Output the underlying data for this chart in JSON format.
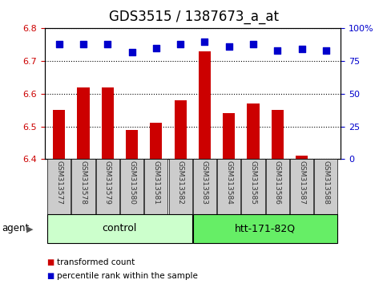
{
  "title": "GDS3515 / 1387673_a_at",
  "samples": [
    "GSM313577",
    "GSM313578",
    "GSM313579",
    "GSM313580",
    "GSM313581",
    "GSM313582",
    "GSM313583",
    "GSM313584",
    "GSM313585",
    "GSM313586",
    "GSM313587",
    "GSM313588"
  ],
  "bar_values": [
    6.55,
    6.62,
    6.62,
    6.49,
    6.51,
    6.58,
    6.73,
    6.54,
    6.57,
    6.55,
    6.41,
    6.4
  ],
  "percentile_values": [
    88,
    88,
    88,
    82,
    85,
    88,
    90,
    86,
    88,
    83,
    84,
    83
  ],
  "ylim_left": [
    6.4,
    6.8
  ],
  "yticks_left": [
    6.4,
    6.5,
    6.6,
    6.7,
    6.8
  ],
  "yticks_right": [
    0,
    25,
    50,
    75,
    100
  ],
  "bar_color": "#cc0000",
  "dot_color": "#0000cc",
  "bar_width": 0.5,
  "control_label": "control",
  "treatment_label": "htt-171-82Q",
  "agent_label": "agent",
  "legend_bar_label": "transformed count",
  "legend_dot_label": "percentile rank within the sample",
  "control_color": "#ccffcc",
  "treatment_color": "#66ee66",
  "dotted_line_color": "#000000",
  "left_axis_color": "#cc0000",
  "right_axis_color": "#0000cc",
  "title_fontsize": 12,
  "tick_fontsize": 8,
  "label_fontsize": 8,
  "group_label_fontsize": 9,
  "dot_size": 40,
  "base_value": 6.4,
  "box_color": "#cccccc",
  "text_color": "#333333",
  "sample_fontsize": 6.5
}
